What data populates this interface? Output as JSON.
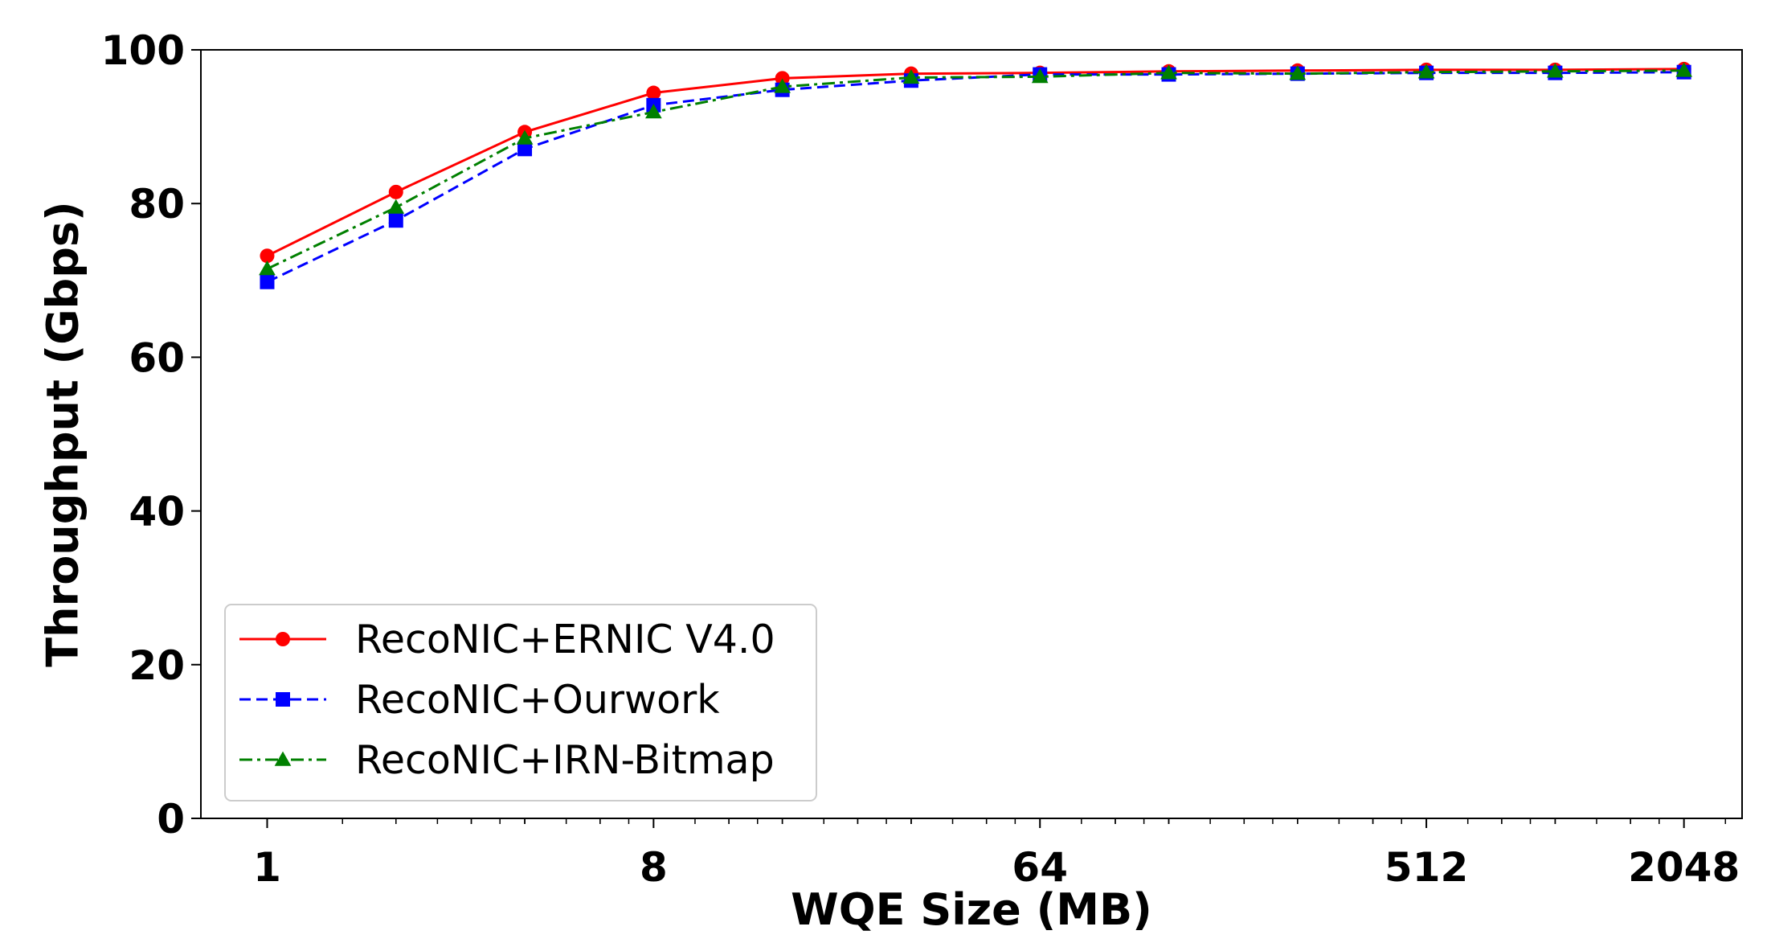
{
  "chart_data": {
    "type": "line",
    "title": "",
    "xlabel": "WQE Size (MB)",
    "ylabel": "Throughput (Gbps)",
    "x_scale": "log2",
    "xlim": [
      0.7,
      2800
    ],
    "ylim": [
      0,
      100
    ],
    "x_ticks": [
      1,
      8,
      64,
      512,
      2048
    ],
    "x_tick_labels": [
      "1",
      "8",
      "64",
      "512",
      "2048"
    ],
    "y_ticks": [
      0,
      20,
      40,
      60,
      80,
      100
    ],
    "y_tick_labels": [
      "0",
      "20",
      "40",
      "60",
      "80",
      "100"
    ],
    "grid": false,
    "legend_position": "lower-left",
    "x": [
      1,
      2,
      4,
      8,
      16,
      32,
      64,
      128,
      256,
      512,
      1024,
      2048
    ],
    "series": [
      {
        "name": "RecoNIC+ERNIC V4.0",
        "color": "#ff0000",
        "line_style": "solid",
        "marker": "circle",
        "values": [
          73.2,
          81.5,
          89.3,
          94.4,
          96.3,
          96.9,
          97.0,
          97.2,
          97.3,
          97.4,
          97.4,
          97.5
        ]
      },
      {
        "name": "RecoNIC+Ourwork",
        "color": "#0000ff",
        "line_style": "dashed",
        "marker": "square",
        "values": [
          69.8,
          77.8,
          87.1,
          92.8,
          94.8,
          96.0,
          96.8,
          96.8,
          96.9,
          97.0,
          97.0,
          97.1
        ]
      },
      {
        "name": "RecoNIC+IRN-Bitmap",
        "color": "#008000",
        "line_style": "dashdot",
        "marker": "triangle",
        "values": [
          71.5,
          79.5,
          88.5,
          91.9,
          95.2,
          96.4,
          96.5,
          97.0,
          96.9,
          97.1,
          97.2,
          97.3
        ]
      }
    ]
  }
}
